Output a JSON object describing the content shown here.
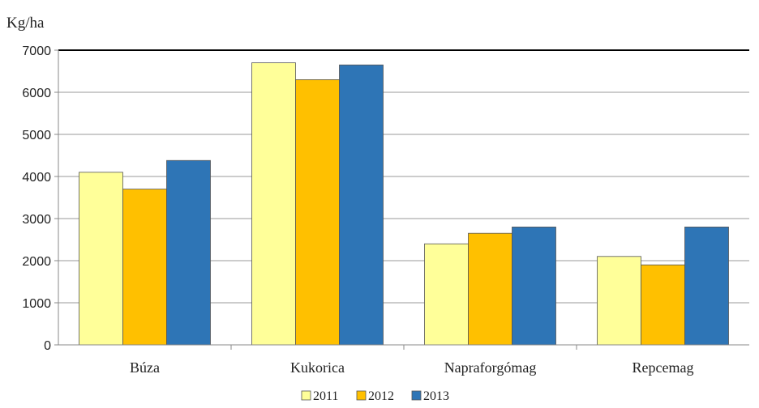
{
  "chart_data": {
    "type": "bar",
    "ylabel": "Kg/ha",
    "categories": [
      "Búza",
      "Kukorica",
      "Napraforgómag",
      "Repcemag"
    ],
    "series": [
      {
        "name": "2011",
        "color": "#FFFF99",
        "values": [
          4100,
          6700,
          2400,
          2100
        ]
      },
      {
        "name": "2012",
        "color": "#FFC000",
        "values": [
          3700,
          6300,
          2650,
          1900
        ]
      },
      {
        "name": "2013",
        "color": "#2E75B6",
        "values": [
          4380,
          6650,
          2800,
          2800
        ]
      }
    ],
    "ylim": [
      0,
      7000
    ],
    "yticks": [
      0,
      1000,
      2000,
      3000,
      4000,
      5000,
      6000,
      7000
    ],
    "grid": true,
    "legend": "bottom"
  }
}
